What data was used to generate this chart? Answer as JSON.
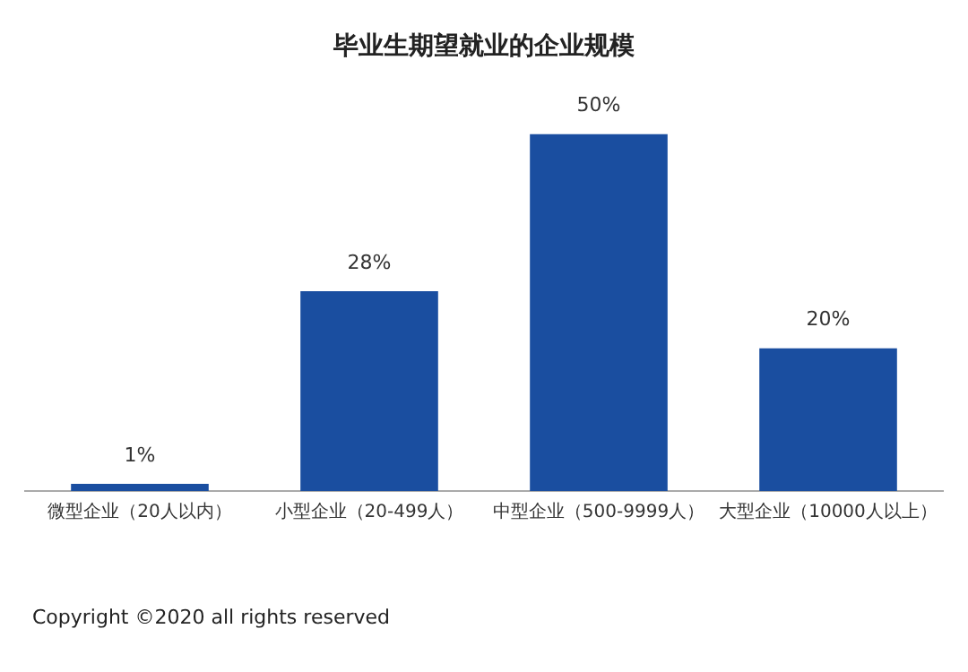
{
  "chart_data": {
    "type": "bar",
    "title": "毕业生期望就业的企业规模",
    "categories": [
      "微型企业（20人以内）",
      "小型企业（20-499人）",
      "中型企业（500-9999人）",
      "大型企业（10000人以上）"
    ],
    "values": [
      1,
      28,
      50,
      20
    ],
    "value_labels": [
      "1%",
      "28%",
      "50%",
      "20%"
    ],
    "color": "#1a4ea0",
    "grid": false,
    "legend": false,
    "annotations": [
      "Copyright ©2020 all rights reserved"
    ]
  }
}
